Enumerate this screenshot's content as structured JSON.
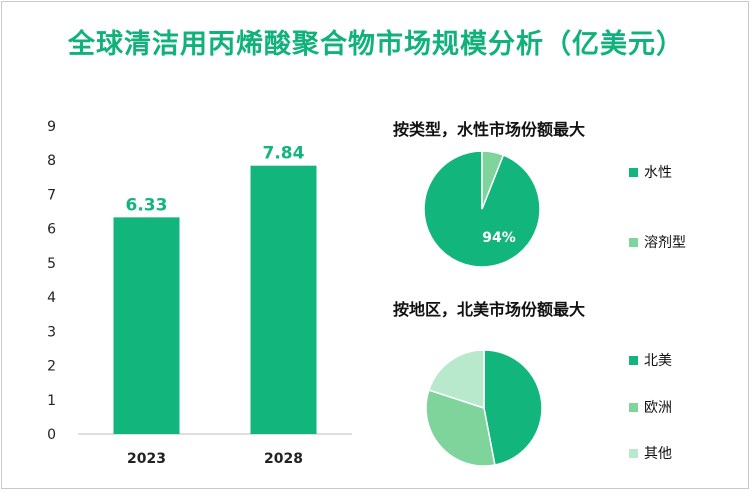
{
  "title": "全球清洁用丙烯酸聚合物市场规模分析（亿美元）",
  "colors": {
    "title": "#10b27a",
    "primary": "#12b57c",
    "secondary": "#7ed49a",
    "tertiary": "#b9e9cd"
  },
  "chart_data": [
    {
      "type": "bar",
      "categories": [
        "2023",
        "2028"
      ],
      "values": [
        6.33,
        7.84
      ],
      "data_labels": [
        "6.33",
        "7.84"
      ],
      "y_ticks": [
        "0",
        "1",
        "2",
        "3",
        "4",
        "5",
        "6",
        "7",
        "8",
        "9"
      ],
      "ylim": [
        0,
        9
      ],
      "grid": false,
      "color": "#12b57c"
    },
    {
      "type": "pie",
      "title": "按类型，水性市场份额最大",
      "labels": [
        "水性",
        "溶剂型"
      ],
      "values": [
        94,
        6
      ],
      "data_labels": [
        "94%",
        ""
      ],
      "colors": [
        "#12b57c",
        "#7ed49a"
      ],
      "legend_position": "right"
    },
    {
      "type": "pie",
      "title": "按地区，北美市场份额最大",
      "labels": [
        "北美",
        "欧洲",
        "其他"
      ],
      "values": [
        47,
        33,
        20
      ],
      "colors": [
        "#12b57c",
        "#7ed49a",
        "#b9e9cd"
      ],
      "legend_position": "right"
    }
  ]
}
